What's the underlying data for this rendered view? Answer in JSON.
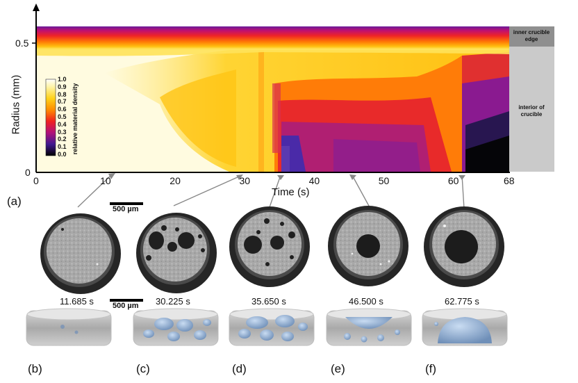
{
  "figure": {
    "heatmap": {
      "y_axis_label": "Radius (mm)",
      "x_axis_label": "Time (s)",
      "y_ticks": [
        "0.5",
        "0"
      ],
      "x_ticks": [
        "0",
        "10",
        "20",
        "30",
        "40",
        "50",
        "60",
        "68"
      ],
      "panel_label": "(a)",
      "colorbar": {
        "title": "relative material density",
        "ticks": [
          "1.0",
          "0.9",
          "0.8",
          "0.7",
          "0.6",
          "0.5",
          "0.4",
          "0.3",
          "0.2",
          "0.1",
          "0.0"
        ]
      },
      "side_labels": {
        "top": "inner crucible edge",
        "bottom": "interior of crucible"
      }
    },
    "scale_bar_label": "500 µm",
    "snapshots": [
      {
        "time": "11.685 s",
        "label": "(b)",
        "t": 11.685
      },
      {
        "time": "30.225 s",
        "label": "(c)",
        "t": 30.225
      },
      {
        "time": "35.650 s",
        "label": "(d)",
        "t": 35.65
      },
      {
        "time": "46.500 s",
        "label": "(e)",
        "t": 46.5
      },
      {
        "time": "62.775 s",
        "label": "(f)",
        "t": 62.775
      }
    ]
  }
}
